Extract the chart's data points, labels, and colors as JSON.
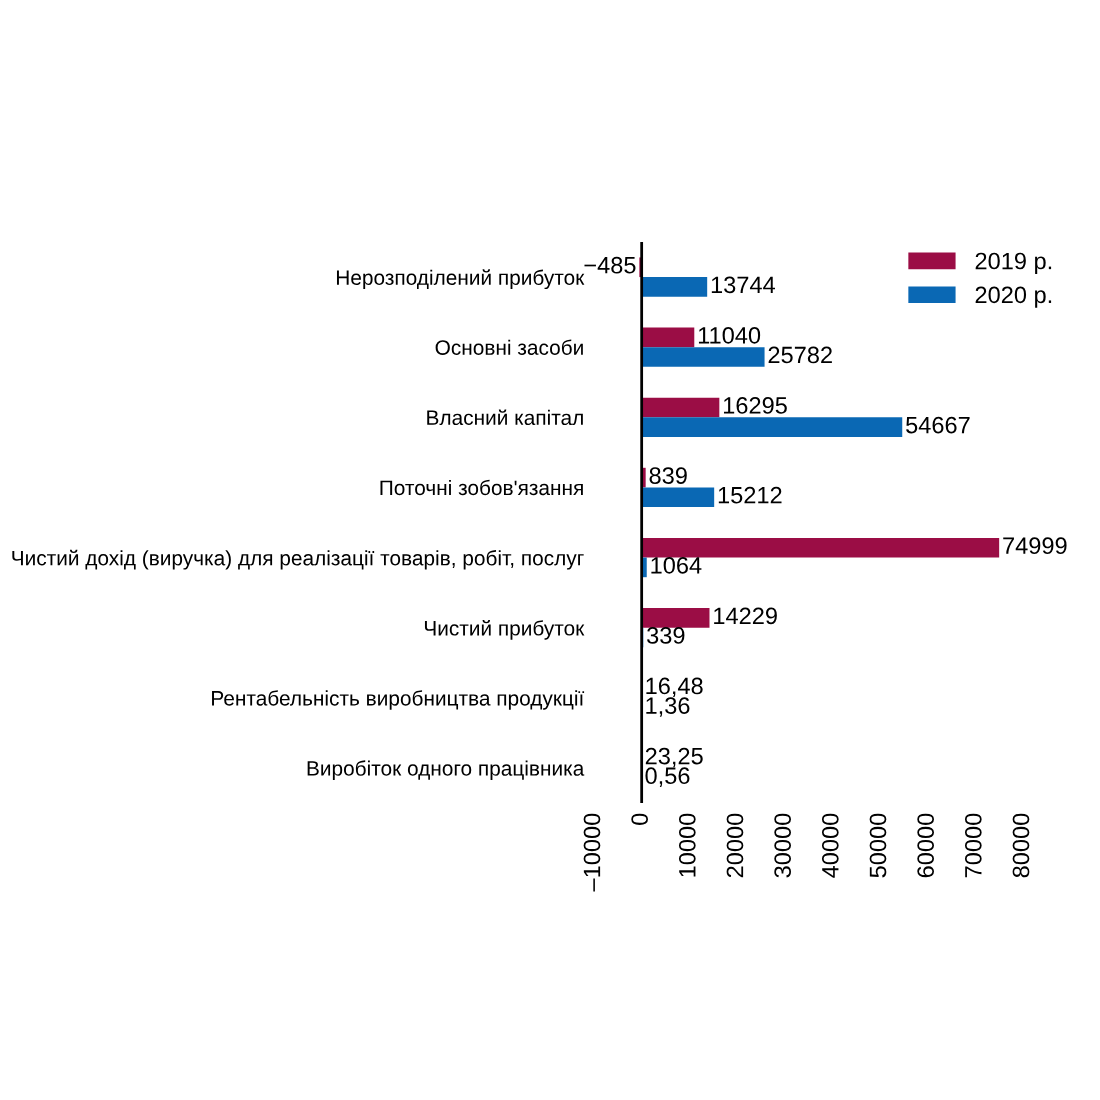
{
  "chart_data": {
    "type": "bar",
    "orientation": "horizontal",
    "categories": [
      "Нерозподілений прибуток",
      "Основні засоби",
      "Власний капітал",
      "Поточні зобов'язання",
      "Чистий дохід (виручка) для реалізації товарів, робіт, послуг",
      "Чистий прибуток",
      "Рентабельність виробництва продукції",
      "Виробіток одного працівника"
    ],
    "series": [
      {
        "name": "2019 р.",
        "color": "#9b0d45",
        "values": [
          -485,
          11040,
          16295,
          839,
          74999,
          14229,
          16.48,
          23.25
        ],
        "value_labels": [
          "−485",
          "11040",
          "16295",
          "839",
          "74999",
          "14229",
          "16,48",
          "23,25"
        ]
      },
      {
        "name": "2020 р.",
        "color": "#0a68b4",
        "values": [
          13744,
          25782,
          54667,
          15212,
          1064,
          339,
          1.36,
          0.56
        ],
        "value_labels": [
          "13744",
          "25782",
          "54667",
          "15212",
          "1064",
          "339",
          "1,36",
          "0,56"
        ]
      }
    ],
    "xlim": [
      -10000,
      80000
    ],
    "xticks": [
      {
        "value": -10000,
        "label": "–10000"
      },
      0,
      10000,
      20000,
      30000,
      40000,
      50000,
      60000,
      70000,
      80000
    ],
    "ref_lines": [
      {
        "axis": "x",
        "value": 0,
        "color": "#000000",
        "line_style": "solid"
      }
    ],
    "legend": "top right",
    "grid": false
  }
}
